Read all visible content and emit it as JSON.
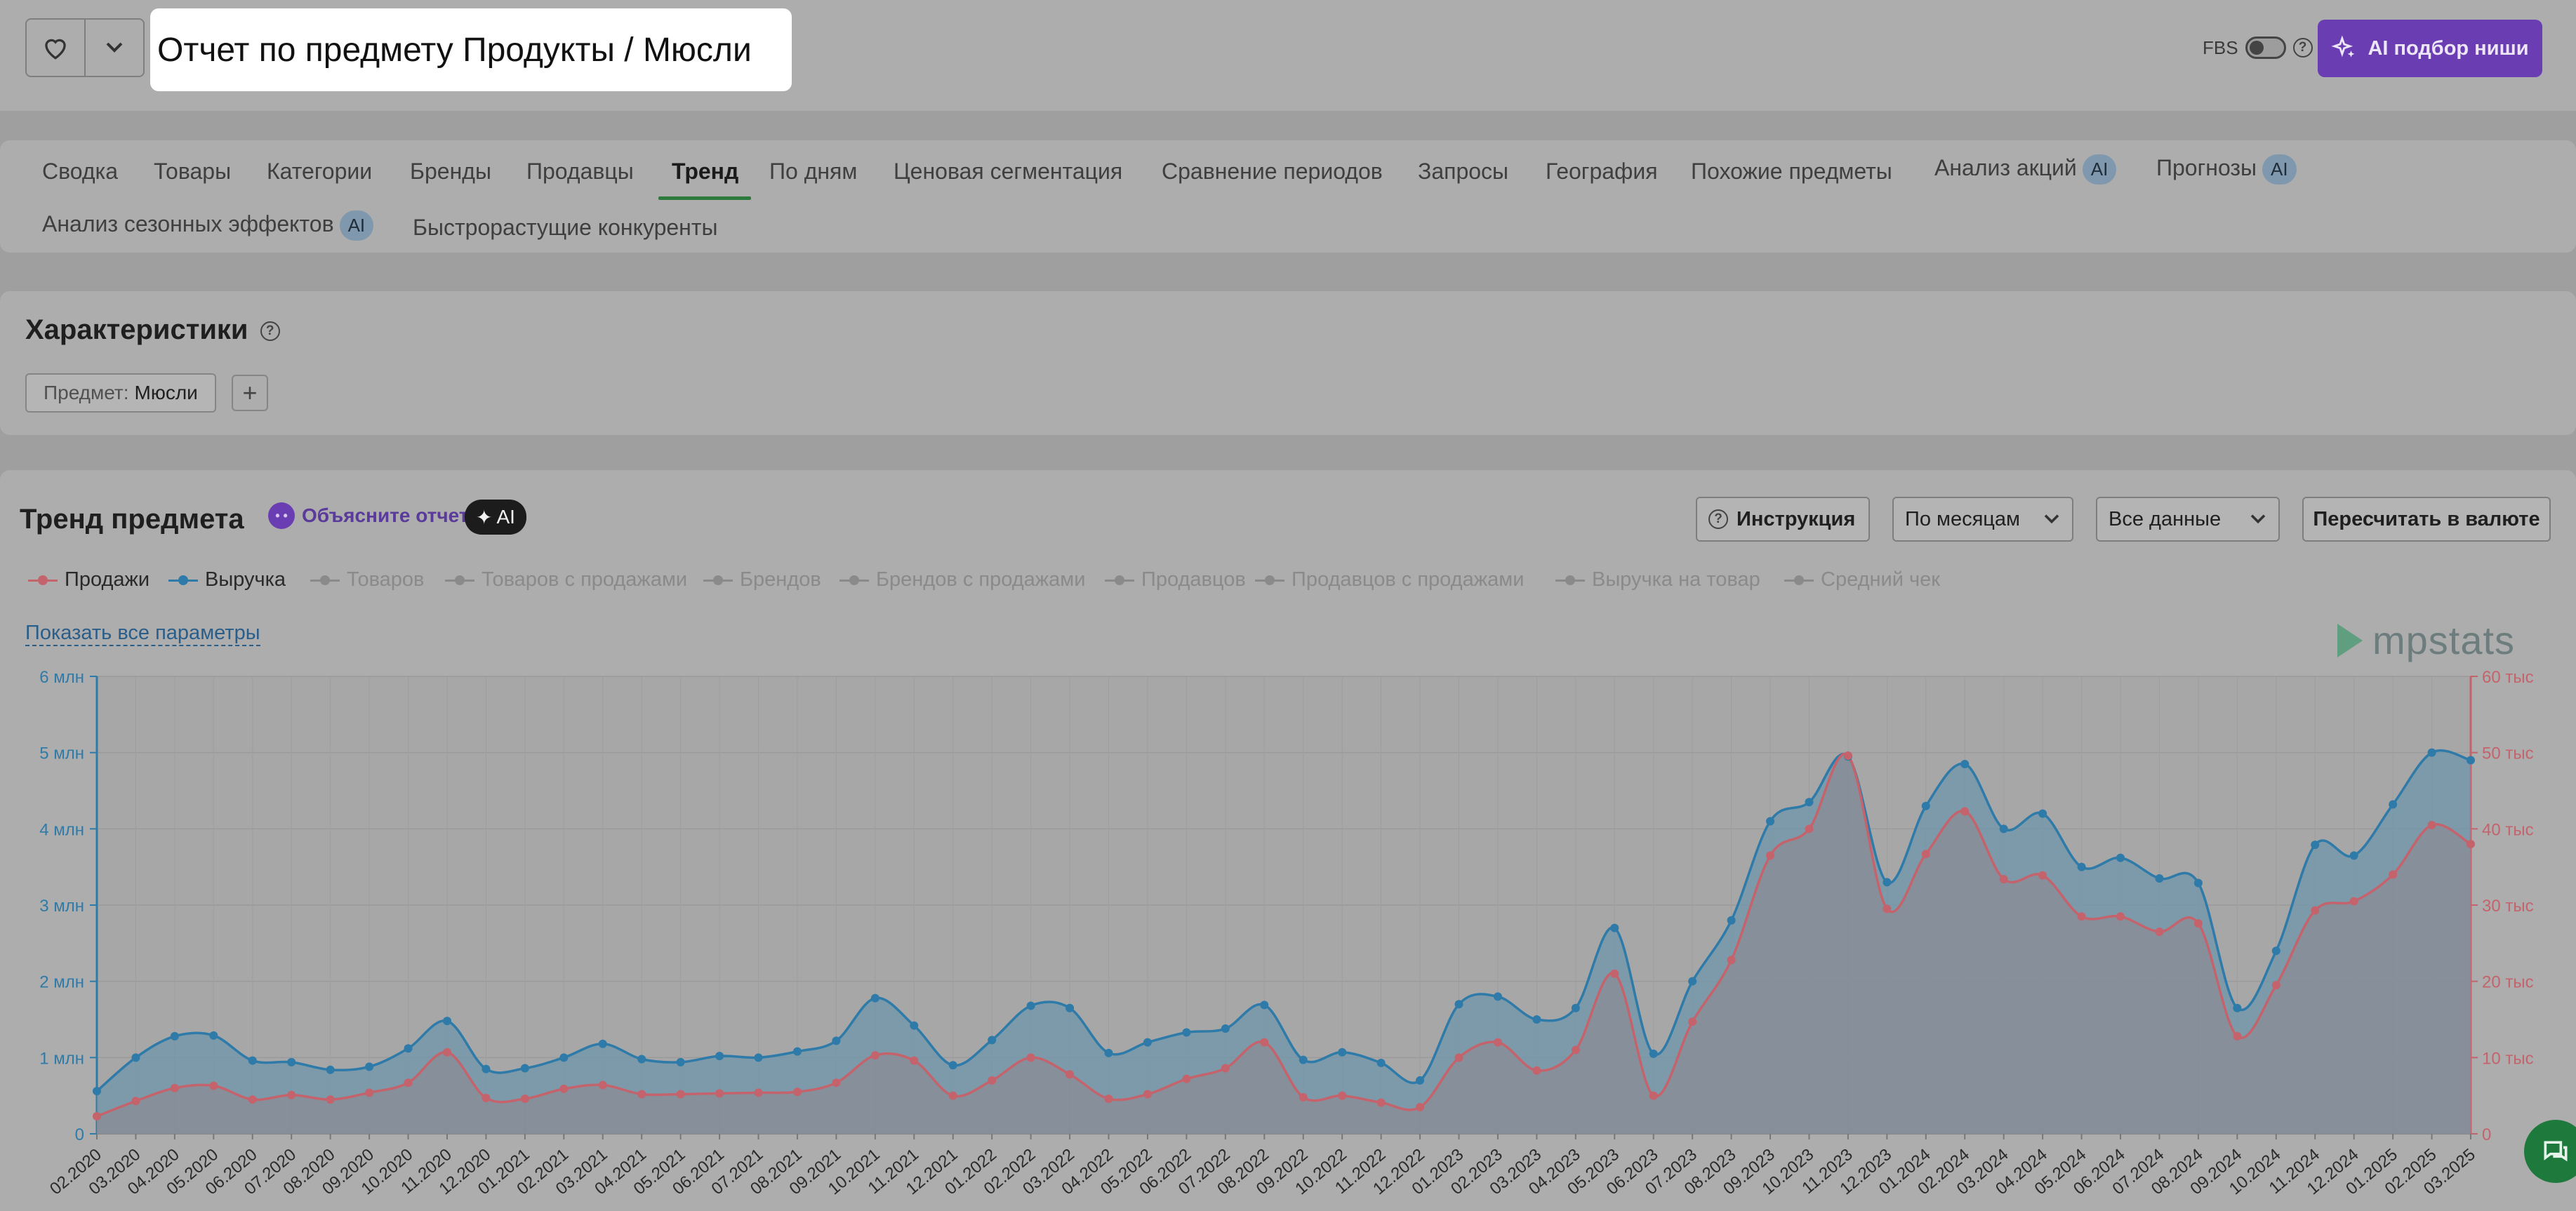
{
  "header": {
    "title": "Отчет по предмету Продукты / Мюсли",
    "fbs_label": "FBS",
    "ai_button_label": "AI подбор ниши"
  },
  "tabs": [
    {
      "label": "Сводка"
    },
    {
      "label": "Товары"
    },
    {
      "label": "Категории"
    },
    {
      "label": "Бренды"
    },
    {
      "label": "Продавцы"
    },
    {
      "label": "Тренд",
      "active": true
    },
    {
      "label": "По дням"
    },
    {
      "label": "Ценовая сегментация"
    },
    {
      "label": "Сравнение периодов"
    },
    {
      "label": "Запросы"
    },
    {
      "label": "География"
    },
    {
      "label": "Похожие предметы"
    },
    {
      "label": "Анализ акций",
      "badge": "AI"
    },
    {
      "label": "Прогнозы",
      "badge": "AI"
    },
    {
      "label": "Анализ сезонных эффектов",
      "badge": "AI"
    },
    {
      "label": "Быстрорастущие конкуренты"
    }
  ],
  "characteristics": {
    "title": "Характеристики",
    "filter_key": "Предмет:",
    "filter_value": "Мюсли"
  },
  "trend": {
    "title": "Тренд предмета",
    "explain_label": "Объясните отчет",
    "ai_badge": "AI",
    "instruction_label": "Инструкция",
    "period_select": "По месяцам",
    "data_select": "Все данные",
    "recalc_label": "Пересчитать в валюте",
    "show_all_label": "Показать все параметры",
    "logo_text": "mpstats",
    "legend": [
      {
        "label": "Продажи",
        "active": true,
        "color": "#c4636c"
      },
      {
        "label": "Выручка",
        "active": true,
        "color": "#2e7aa8"
      },
      {
        "label": "Товаров",
        "active": false
      },
      {
        "label": "Товаров с продажами",
        "active": false
      },
      {
        "label": "Брендов",
        "active": false
      },
      {
        "label": "Брендов с продажами",
        "active": false
      },
      {
        "label": "Продавцов",
        "active": false
      },
      {
        "label": "Продавцов с продажами",
        "active": false
      },
      {
        "label": "Выручка на товар",
        "active": false
      },
      {
        "label": "Средний чек",
        "active": false
      }
    ]
  },
  "chart_data": {
    "type": "area",
    "x": [
      "02.2020",
      "03.2020",
      "04.2020",
      "05.2020",
      "06.2020",
      "07.2020",
      "08.2020",
      "09.2020",
      "10.2020",
      "11.2020",
      "12.2020",
      "01.2021",
      "02.2021",
      "03.2021",
      "04.2021",
      "05.2021",
      "06.2021",
      "07.2021",
      "08.2021",
      "09.2021",
      "10.2021",
      "11.2021",
      "12.2021",
      "01.2022",
      "02.2022",
      "03.2022",
      "04.2022",
      "05.2022",
      "06.2022",
      "07.2022",
      "08.2022",
      "09.2022",
      "10.2022",
      "11.2022",
      "12.2022",
      "01.2023",
      "02.2023",
      "03.2023",
      "04.2023",
      "05.2023",
      "06.2023",
      "07.2023",
      "08.2023",
      "09.2023",
      "10.2023",
      "11.2023",
      "12.2023",
      "01.2024",
      "02.2024",
      "03.2024",
      "04.2024",
      "05.2024",
      "06.2024",
      "07.2024",
      "08.2024",
      "09.2024",
      "10.2024",
      "11.2024",
      "12.2024",
      "01.2025",
      "02.2025",
      "03.2025"
    ],
    "y_left": {
      "ticks": [
        "0",
        "1 млн",
        "2 млн",
        "3 млн",
        "4 млн",
        "5 млн",
        "6 млн"
      ],
      "ylim": [
        0,
        6000000
      ]
    },
    "y_right": {
      "ticks": [
        "0",
        "10 тыс",
        "20 тыс",
        "30 тыс",
        "40 тыс",
        "50 тыс",
        "60 тыс"
      ],
      "ylim": [
        0,
        60000
      ]
    },
    "grid": true,
    "series": [
      {
        "name": "Выручка",
        "axis": "left",
        "color": "#2e7aa8",
        "values": [
          560000,
          1000000,
          1280000,
          1290000,
          960000,
          940000,
          840000,
          880000,
          1120000,
          1480000,
          850000,
          860000,
          1000000,
          1180000,
          980000,
          940000,
          1020000,
          1000000,
          1080000,
          1220000,
          1780000,
          1420000,
          900000,
          1230000,
          1680000,
          1650000,
          1060000,
          1200000,
          1330000,
          1380000,
          1690000,
          970000,
          1070000,
          930000,
          700000,
          1700000,
          1800000,
          1500000,
          1650000,
          2700000,
          1050000,
          2000000,
          2800000,
          4100000,
          4350000,
          4950000,
          3300000,
          4300000,
          4850000,
          4000000,
          4200000,
          3500000,
          3620000,
          3350000,
          3290000,
          1650000,
          2400000,
          3790000,
          3650000,
          4320000,
          5000000,
          4900000
        ]
      },
      {
        "name": "Продажи",
        "axis": "right",
        "color": "#c4636c",
        "values": [
          2300,
          4300,
          6000,
          6300,
          4500,
          5100,
          4500,
          5400,
          6700,
          10700,
          4700,
          4600,
          5900,
          6400,
          5200,
          5200,
          5300,
          5400,
          5500,
          6700,
          10300,
          9600,
          5000,
          7000,
          10000,
          7800,
          4600,
          5200,
          7200,
          8600,
          12000,
          4800,
          5000,
          4100,
          3500,
          10000,
          12000,
          8300,
          11000,
          21000,
          5000,
          14700,
          22800,
          36500,
          40000,
          49600,
          29500,
          36700,
          42300,
          33400,
          33900,
          28500,
          28500,
          26500,
          27600,
          12800,
          19500,
          29300,
          30500,
          34000,
          40500,
          38000
        ]
      }
    ]
  }
}
